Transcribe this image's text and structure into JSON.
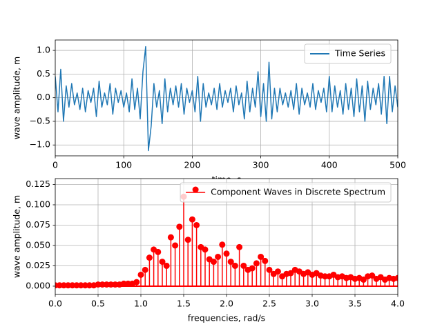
{
  "chart_data": [
    {
      "type": "line",
      "xlabel": "time, s",
      "ylabel": "wave amplitude, m",
      "x": [
        0,
        4,
        8,
        12,
        16,
        20,
        24,
        28,
        32,
        36,
        40,
        44,
        48,
        52,
        56,
        60,
        64,
        68,
        72,
        76,
        80,
        84,
        88,
        92,
        96,
        100,
        104,
        108,
        112,
        116,
        120,
        124,
        128,
        132,
        136,
        140,
        144,
        148,
        152,
        156,
        160,
        164,
        168,
        172,
        176,
        180,
        184,
        188,
        192,
        196,
        200,
        204,
        208,
        212,
        216,
        220,
        224,
        228,
        232,
        236,
        240,
        244,
        248,
        252,
        256,
        260,
        264,
        268,
        272,
        276,
        280,
        284,
        288,
        292,
        296,
        300,
        304,
        308,
        312,
        316,
        320,
        324,
        328,
        332,
        336,
        340,
        344,
        348,
        352,
        356,
        360,
        364,
        368,
        372,
        376,
        380,
        384,
        388,
        392,
        396,
        400,
        404,
        408,
        412,
        416,
        420,
        424,
        428,
        432,
        436,
        440,
        444,
        448,
        452,
        456,
        460,
        464,
        468,
        472,
        476,
        480,
        484,
        488,
        492,
        496,
        500
      ],
      "series": [
        {
          "name": "Time Series",
          "color": "#1f77b4",
          "values": [
            0.45,
            -0.3,
            0.6,
            -0.5,
            0.25,
            -0.2,
            0.3,
            -0.15,
            0.1,
            -0.25,
            0.2,
            -0.3,
            0.15,
            -0.1,
            0.2,
            -0.4,
            0.35,
            -0.2,
            0.1,
            -0.15,
            0.3,
            -0.35,
            0.2,
            -0.1,
            0.15,
            -0.2,
            0.1,
            -0.3,
            0.4,
            -0.25,
            0.2,
            -0.45,
            0.55,
            1.08,
            -1.12,
            -0.6,
            0.3,
            -0.2,
            0.15,
            -0.55,
            0.4,
            -0.3,
            0.2,
            -0.15,
            0.25,
            -0.2,
            0.3,
            -0.35,
            0.2,
            -0.1,
            0.15,
            -0.3,
            0.45,
            -0.5,
            0.3,
            -0.2,
            0.1,
            -0.15,
            0.2,
            -0.25,
            0.3,
            -0.2,
            0.15,
            -0.1,
            0.2,
            -0.3,
            0.25,
            -0.15,
            0.1,
            -0.45,
            0.35,
            -0.3,
            0.2,
            -0.2,
            0.55,
            -0.4,
            0.3,
            -0.5,
            0.75,
            -0.45,
            0.2,
            -0.3,
            0.2,
            -0.15,
            0.1,
            -0.2,
            0.15,
            -0.25,
            0.3,
            -0.35,
            0.2,
            -0.15,
            0.1,
            -0.2,
            0.3,
            -0.25,
            0.15,
            -0.1,
            0.2,
            -0.3,
            0.45,
            -0.3,
            0.25,
            -0.2,
            0.15,
            -0.35,
            0.3,
            -0.25,
            0.2,
            -0.4,
            0.4,
            -0.3,
            0.25,
            -0.5,
            0.35,
            -0.25,
            0.2,
            -0.15,
            0.3,
            -0.35,
            0.45,
            -0.55,
            0.45,
            -0.3,
            0.25,
            -0.2
          ]
        }
      ],
      "xlim": [
        0,
        500
      ],
      "ylim": [
        -1.23,
        1.22
      ],
      "xticks": [
        0,
        100,
        200,
        300,
        400,
        500
      ],
      "yticks": [
        {
          "value": -1.0,
          "label": "−1.0"
        },
        {
          "value": -0.5,
          "label": "−0.5"
        },
        {
          "value": 0.0,
          "label": "0.0"
        },
        {
          "value": 0.5,
          "label": "0.5"
        },
        {
          "value": 1.0,
          "label": "1.0"
        }
      ],
      "grid": true,
      "legend": "upper right"
    },
    {
      "type": "stem",
      "xlabel": "frequencies, rad/s",
      "ylabel": "wave amplitude, m",
      "x": [
        0.0,
        0.05,
        0.1,
        0.15,
        0.2,
        0.25,
        0.3,
        0.35,
        0.4,
        0.45,
        0.5,
        0.55,
        0.6,
        0.65,
        0.7,
        0.75,
        0.8,
        0.85,
        0.9,
        0.95,
        1.0,
        1.05,
        1.1,
        1.15,
        1.2,
        1.25,
        1.3,
        1.35,
        1.4,
        1.45,
        1.5,
        1.55,
        1.6,
        1.65,
        1.7,
        1.75,
        1.8,
        1.85,
        1.9,
        1.95,
        2.0,
        2.05,
        2.1,
        2.15,
        2.2,
        2.25,
        2.3,
        2.35,
        2.4,
        2.45,
        2.5,
        2.55,
        2.6,
        2.65,
        2.7,
        2.75,
        2.8,
        2.85,
        2.9,
        2.95,
        3.0,
        3.05,
        3.1,
        3.15,
        3.2,
        3.25,
        3.3,
        3.35,
        3.4,
        3.45,
        3.5,
        3.55,
        3.6,
        3.65,
        3.7,
        3.75,
        3.8,
        3.85,
        3.9,
        3.95,
        4.0
      ],
      "series": [
        {
          "name": "Component Waves in Discrete Spectrum",
          "color": "#ff0000",
          "values": [
            0.001,
            0.001,
            0.001,
            0.001,
            0.001,
            0.001,
            0.001,
            0.001,
            0.001,
            0.001,
            0.002,
            0.002,
            0.002,
            0.002,
            0.002,
            0.002,
            0.003,
            0.003,
            0.003,
            0.005,
            0.014,
            0.02,
            0.035,
            0.045,
            0.042,
            0.03,
            0.025,
            0.06,
            0.05,
            0.073,
            0.11,
            0.057,
            0.082,
            0.075,
            0.048,
            0.045,
            0.033,
            0.03,
            0.036,
            0.051,
            0.04,
            0.03,
            0.025,
            0.048,
            0.025,
            0.02,
            0.022,
            0.028,
            0.036,
            0.031,
            0.02,
            0.015,
            0.018,
            0.012,
            0.015,
            0.016,
            0.02,
            0.018,
            0.015,
            0.017,
            0.014,
            0.016,
            0.013,
            0.012,
            0.012,
            0.014,
            0.011,
            0.012,
            0.01,
            0.011,
            0.009,
            0.01,
            0.008,
            0.012,
            0.013,
            0.009,
            0.011,
            0.008,
            0.01,
            0.009,
            0.01
          ]
        }
      ],
      "xlim": [
        0,
        4
      ],
      "ylim": [
        -0.0102,
        0.1322
      ],
      "xticks": [
        {
          "value": 0.0,
          "label": "0.0"
        },
        {
          "value": 0.5,
          "label": "0.5"
        },
        {
          "value": 1.0,
          "label": "1.0"
        },
        {
          "value": 1.5,
          "label": "1.5"
        },
        {
          "value": 2.0,
          "label": "2.0"
        },
        {
          "value": 2.5,
          "label": "2.5"
        },
        {
          "value": 3.0,
          "label": "3.0"
        },
        {
          "value": 3.5,
          "label": "3.5"
        },
        {
          "value": 4.0,
          "label": "4.0"
        }
      ],
      "yticks": [
        {
          "value": 0.0,
          "label": "0.000"
        },
        {
          "value": 0.025,
          "label": "0.025"
        },
        {
          "value": 0.05,
          "label": "0.050"
        },
        {
          "value": 0.075,
          "label": "0.075"
        },
        {
          "value": 0.1,
          "label": "0.100"
        },
        {
          "value": 0.125,
          "label": "0.125"
        }
      ],
      "grid": true,
      "legend": "upper right"
    }
  ]
}
